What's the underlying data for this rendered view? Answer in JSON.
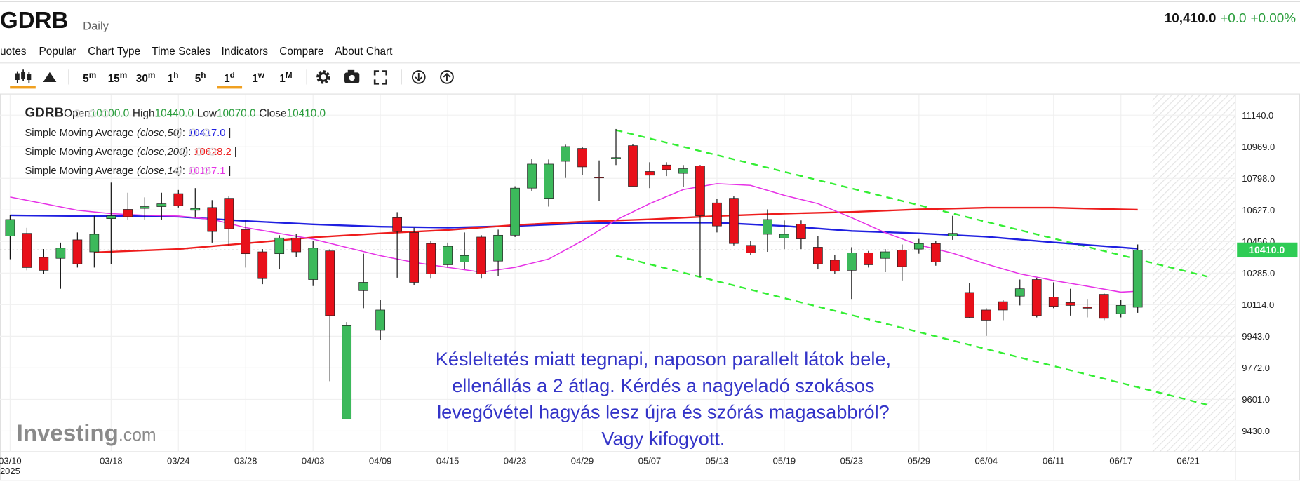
{
  "header": {
    "symbol": "GDRB",
    "interval": "Daily",
    "price": "10,410.0",
    "change": "+0.0",
    "change_pct": "+0.00%"
  },
  "menu": [
    "uotes",
    "Popular",
    "Chart Type",
    "Time Scales",
    "Indicators",
    "Compare",
    "About Chart"
  ],
  "toolbar": {
    "timescales": [
      {
        "num": "5",
        "unit": "m"
      },
      {
        "num": "15",
        "unit": "m"
      },
      {
        "num": "30",
        "unit": "m"
      },
      {
        "num": "1",
        "unit": "h"
      },
      {
        "num": "5",
        "unit": "h"
      },
      {
        "num": "1",
        "unit": "d"
      },
      {
        "num": "1",
        "unit": "w"
      },
      {
        "num": "1",
        "unit": "M"
      }
    ]
  },
  "legend": {
    "symbol": "GDRB",
    "fields": [
      {
        "label": "Open",
        "value": "10100.0"
      },
      {
        "label": "High",
        "value": "10440.0"
      },
      {
        "label": "Low",
        "value": "10070.0"
      },
      {
        "label": "Close",
        "value": "10410.0"
      }
    ]
  },
  "annotation": {
    "lines": [
      "Késleltetés miatt tegnapi, naposon parallelt látok bele,",
      "ellenállás a 2 átlag. Kérdés a nagyeladó szokásos",
      "levegővétel hagyás lesz újra és szórás magasabbról?",
      "Vagy kifogyott."
    ]
  },
  "watermark": {
    "brand": "Investing",
    "suffix": ".com"
  },
  "chart_data": {
    "type": "candlestick",
    "xlim": [
      -0.6,
      72.8
    ],
    "ylim": [
      9318,
      11252
    ],
    "xticks": [
      {
        "value": 0,
        "label": "03/10"
      },
      {
        "value": 6,
        "label": "03/18"
      },
      {
        "value": 10,
        "label": "03/24"
      },
      {
        "value": 14,
        "label": "03/28"
      },
      {
        "value": 18,
        "label": "04/03"
      },
      {
        "value": 22,
        "label": "04/09"
      },
      {
        "value": 26,
        "label": "04/15"
      },
      {
        "value": 30,
        "label": "04/23"
      },
      {
        "value": 34,
        "label": "04/29"
      },
      {
        "value": 38,
        "label": "05/07"
      },
      {
        "value": 42,
        "label": "05/13"
      },
      {
        "value": 46,
        "label": "05/19"
      },
      {
        "value": 50,
        "label": "05/23"
      },
      {
        "value": 54,
        "label": "05/29"
      },
      {
        "value": 58,
        "label": "06/04"
      },
      {
        "value": 62,
        "label": "06/11"
      },
      {
        "value": 66,
        "label": "06/17"
      },
      {
        "value": 70,
        "label": "06/21"
      }
    ],
    "year_label": "2025",
    "yticks": [
      {
        "value": 11140,
        "label": "11140.0"
      },
      {
        "value": 10969,
        "label": "10969.0"
      },
      {
        "value": 10798,
        "label": "10798.0"
      },
      {
        "value": 10627,
        "label": "10627.0"
      },
      {
        "value": 10456,
        "label": "10456.0"
      },
      {
        "value": 10285,
        "label": "10285.0"
      },
      {
        "value": 10114,
        "label": "10114.0"
      },
      {
        "value": 9943,
        "label": "9943.0"
      },
      {
        "value": 9772,
        "label": "9772.0"
      },
      {
        "value": 9601,
        "label": "9601.0"
      },
      {
        "value": 9430,
        "label": "9430.0"
      }
    ],
    "grid": true,
    "up_color": "#3cb95b",
    "down_color": "#e8101a",
    "open": [
      10485,
      10500,
      10370,
      10365,
      10465,
      10400,
      10580,
      10630,
      10635,
      10645,
      10715,
      10625,
      10640,
      10690,
      10520,
      10400,
      10390,
      10475,
      10250,
      10405,
      9495,
      10190,
      9975,
      10585,
      10505,
      10445,
      10330,
      10345,
      10480,
      10350,
      10490,
      10745,
      10690,
      10890,
      10960,
      10805,
      10905,
      10975,
      10835,
      10870,
      10825,
      10865,
      10665,
      10690,
      10435,
      10495,
      10475,
      10550,
      10425,
      10355,
      10300,
      10395,
      10365,
      10410,
      10415,
      10445,
      10485,
      10180,
      10085,
      10130,
      10160,
      10250,
      10155,
      10125,
      10100,
      10170,
      10065,
      10100
    ],
    "high": [
      10600,
      10530,
      10415,
      10450,
      10505,
      10595,
      10775,
      10720,
      10695,
      10720,
      10735,
      10745,
      10680,
      10700,
      10570,
      10415,
      10490,
      10495,
      10460,
      10415,
      10020,
      10390,
      10140,
      10615,
      10530,
      10460,
      10450,
      10505,
      10490,
      10520,
      10755,
      10905,
      10900,
      10980,
      10970,
      10895,
      11065,
      10985,
      10885,
      10885,
      10870,
      10870,
      10685,
      10700,
      10460,
      10630,
      10570,
      10570,
      10485,
      10385,
      10425,
      10405,
      10415,
      10440,
      10470,
      10460,
      10595,
      10230,
      10095,
      10140,
      10250,
      10260,
      10235,
      10200,
      10145,
      10175,
      10140,
      10440
    ],
    "low": [
      10360,
      10300,
      10280,
      10200,
      10315,
      10315,
      10335,
      10575,
      10575,
      10575,
      10640,
      10585,
      10450,
      10435,
      10315,
      10225,
      10305,
      10370,
      10215,
      9700,
      9495,
      10095,
      9925,
      10260,
      10220,
      10255,
      10315,
      10305,
      10255,
      10270,
      10480,
      10730,
      10645,
      10800,
      10815,
      10675,
      10870,
      10755,
      10745,
      10810,
      10750,
      10265,
      10505,
      10435,
      10385,
      10400,
      10415,
      10415,
      10305,
      10280,
      10145,
      10315,
      10290,
      10245,
      10390,
      10325,
      10465,
      10040,
      9945,
      10030,
      10110,
      10045,
      10095,
      10055,
      10045,
      10030,
      10045,
      10070
    ],
    "close": [
      10575,
      10315,
      10300,
      10420,
      10335,
      10495,
      10595,
      10590,
      10645,
      10660,
      10650,
      10635,
      10510,
      10525,
      10390,
      10255,
      10475,
      10400,
      10420,
      10055,
      10000,
      10235,
      10085,
      10510,
      10235,
      10280,
      10430,
      10380,
      10280,
      10490,
      10745,
      10875,
      10875,
      10970,
      10860,
      10800,
      10910,
      10755,
      10815,
      10845,
      10850,
      10595,
      10540,
      10445,
      10395,
      10575,
      10495,
      10470,
      10335,
      10295,
      10395,
      10330,
      10400,
      10320,
      10445,
      10345,
      10500,
      10045,
      10030,
      10085,
      10200,
      10055,
      10105,
      10110,
      10095,
      10040,
      10110,
      10410
    ],
    "series": [
      {
        "name": "Simple Moving Average",
        "params": "(close,50)",
        "value_label": "10417.0",
        "color": "#1f1fe0",
        "x": [
          0,
          4,
          8,
          10,
          14,
          18,
          22,
          26,
          30,
          34,
          38,
          42,
          46,
          50,
          54,
          58,
          62,
          66,
          67
        ],
        "values": [
          10598,
          10594,
          10594,
          10590,
          10567,
          10549,
          10536,
          10531,
          10540,
          10554,
          10558,
          10558,
          10540,
          10513,
          10500,
          10482,
          10451,
          10424,
          10417
        ]
      },
      {
        "name": "Simple Moving Average",
        "params": "(close,200)",
        "value_label": "10628.2",
        "color": "#ee1c1c",
        "x": [
          5,
          10,
          14,
          18,
          22,
          26,
          30,
          34,
          38,
          42,
          46,
          50,
          54,
          58,
          62,
          66,
          67
        ],
        "values": [
          10397,
          10415,
          10446,
          10478,
          10500,
          10518,
          10545,
          10563,
          10576,
          10594,
          10607,
          10616,
          10630,
          10639,
          10639,
          10630,
          10628.2
        ]
      },
      {
        "name": "Simple Moving Average",
        "params": "(close,14)",
        "value_label": "10187.1",
        "color": "#e632e6",
        "x": [
          0,
          2,
          4,
          6,
          8,
          10,
          12,
          14,
          16,
          18,
          20,
          22,
          24,
          26,
          28,
          30,
          32,
          34,
          36,
          38,
          40,
          42,
          44,
          46,
          48,
          50,
          52,
          54,
          56,
          58,
          60,
          62,
          64,
          66,
          67
        ],
        "values": [
          10697,
          10661,
          10625,
          10607,
          10598,
          10594,
          10576,
          10531,
          10500,
          10469,
          10424,
          10379,
          10343,
          10316,
          10290,
          10316,
          10361,
          10460,
          10572,
          10661,
          10737,
          10769,
          10760,
          10706,
          10661,
          10585,
          10504,
          10437,
          10393,
          10334,
          10281,
          10245,
          10214,
          10182,
          10187.1
        ]
      }
    ],
    "trendlines": [
      {
        "color": "#33ee33",
        "x": [
          36,
          71.1
        ],
        "values": [
          11059,
          10267
        ]
      },
      {
        "color": "#33ee33",
        "x": [
          36,
          71.1
        ],
        "values": [
          10379,
          9573
        ]
      }
    ],
    "last_price": {
      "value": 10410,
      "label": "10410.0",
      "color": "#2ecc55"
    }
  }
}
